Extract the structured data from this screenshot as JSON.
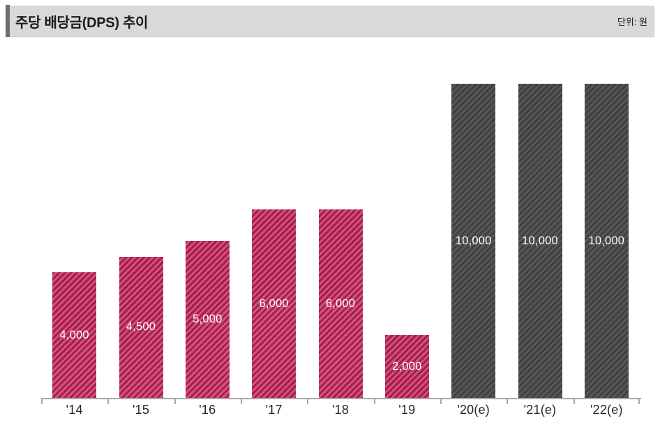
{
  "header": {
    "title": "주당 배당금(DPS) 추이",
    "unit_label": "단위: 원"
  },
  "chart_data": {
    "type": "bar",
    "title": "주당 배당금(DPS) 추이",
    "unit": "원",
    "categories": [
      "'14",
      "'15",
      "'16",
      "'17",
      "'18",
      "'19",
      "'20(e)",
      "'21(e)",
      "'22(e)"
    ],
    "values": [
      4000,
      4500,
      5000,
      6000,
      6000,
      2000,
      10000,
      10000,
      10000
    ],
    "bars": [
      {
        "category": "'14",
        "value": 4000,
        "label": "4,000",
        "group": "actual"
      },
      {
        "category": "'15",
        "value": 4500,
        "label": "4,500",
        "group": "actual"
      },
      {
        "category": "'16",
        "value": 5000,
        "label": "5,000",
        "group": "actual"
      },
      {
        "category": "'17",
        "value": 6000,
        "label": "6,000",
        "group": "actual"
      },
      {
        "category": "'18",
        "value": 6000,
        "label": "6,000",
        "group": "actual"
      },
      {
        "category": "'19",
        "value": 2000,
        "label": "2,000",
        "group": "actual"
      },
      {
        "category": "'20(e)",
        "value": 10000,
        "label": "10,000",
        "group": "estimate"
      },
      {
        "category": "'21(e)",
        "value": 10000,
        "label": "10,000",
        "group": "estimate"
      },
      {
        "category": "'22(e)",
        "value": 10000,
        "label": "10,000",
        "group": "estimate"
      }
    ],
    "groups": {
      "actual": {
        "stripe_dark": "#ab1a4e",
        "stripe_light": "#cd567d"
      },
      "estimate": {
        "stripe_dark": "#404040",
        "stripe_light": "#575757"
      }
    },
    "ylim": [
      0,
      10000
    ],
    "xlabel": "",
    "ylabel": "",
    "grid": false,
    "legend": "none",
    "value_label_color": "#ffffff",
    "axis_color": "#a8a8a8",
    "hatch_style": "diagonal-forward"
  }
}
